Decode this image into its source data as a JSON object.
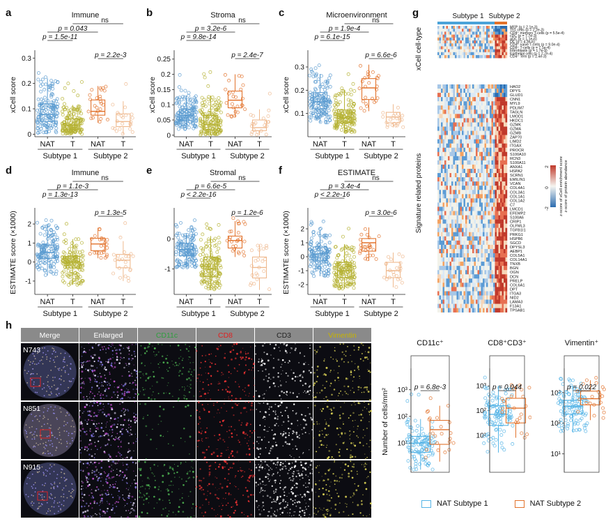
{
  "colors": {
    "nat1": "#5B9BD0",
    "t1": "#B5B133",
    "nat2": "#E2722B",
    "t2": "#EFB98E",
    "nat1_light": "#55B4E6"
  },
  "panel_letters": [
    "a",
    "b",
    "c",
    "d",
    "e",
    "f",
    "g",
    "h"
  ],
  "group_labels": {
    "nat": "NAT",
    "t": "T",
    "subtype1": "Subtype 1",
    "subtype2": "Subtype 2"
  },
  "chart_data": [
    {
      "id": "a",
      "type": "box",
      "title": "Immune",
      "ylabel": "xCell score",
      "ylim": [
        -0.01,
        0.32
      ],
      "yticks": [
        0.0,
        0.1,
        0.2,
        0.3
      ],
      "groups": [
        {
          "name": "NAT Subtype 1",
          "q1": 0.05,
          "median": 0.078,
          "q3": 0.12,
          "wlo": 0.0,
          "whi": 0.22
        },
        {
          "name": "T Subtype 1",
          "q1": 0.02,
          "median": 0.035,
          "q3": 0.06,
          "wlo": 0.0,
          "whi": 0.115
        },
        {
          "name": "NAT Subtype 2",
          "q1": 0.075,
          "median": 0.09,
          "q3": 0.135,
          "wlo": 0.045,
          "whi": 0.19
        },
        {
          "name": "T Subtype 2",
          "q1": 0.03,
          "median": 0.05,
          "q3": 0.08,
          "wlo": 0.0,
          "whi": 0.13
        }
      ],
      "comparisons": [
        {
          "text": "ns",
          "level": 0
        },
        {
          "text": "p = 0.043",
          "level": 1
        },
        {
          "text": "p = 1.5e-11",
          "level": 2
        },
        {
          "text": "p = 2.2e-3",
          "level": 3
        }
      ]
    },
    {
      "id": "b",
      "type": "box",
      "title": "Stroma",
      "ylabel": "xCell score",
      "ylim": [
        -0.005,
        0.27
      ],
      "yticks": [
        0.0,
        0.05,
        0.1,
        0.15,
        0.2,
        0.25
      ],
      "groups": [
        {
          "name": "NAT Subtype 1",
          "q1": 0.048,
          "median": 0.065,
          "q3": 0.085,
          "wlo": 0.02,
          "whi": 0.13
        },
        {
          "name": "T Subtype 1",
          "q1": 0.018,
          "median": 0.035,
          "q3": 0.065,
          "wlo": 0.0,
          "whi": 0.13
        },
        {
          "name": "NAT Subtype 2",
          "q1": 0.09,
          "median": 0.115,
          "q3": 0.145,
          "wlo": 0.06,
          "whi": 0.2
        },
        {
          "name": "T Subtype 2",
          "q1": 0.015,
          "median": 0.025,
          "q3": 0.05,
          "wlo": 0.0,
          "whi": 0.085
        }
      ],
      "comparisons": [
        {
          "text": "ns",
          "level": 0
        },
        {
          "text": "p = 3.2e-6",
          "level": 1
        },
        {
          "text": "p = 9.8e-14",
          "level": 2
        },
        {
          "text": "p = 2.4e-7",
          "level": 3
        }
      ]
    },
    {
      "id": "c",
      "type": "box",
      "title": "Microenvironment",
      "ylabel": "xCell score",
      "ylim": [
        0.0,
        0.36
      ],
      "yticks": [
        0.1,
        0.2,
        0.3
      ],
      "groups": [
        {
          "name": "NAT Subtype 1",
          "q1": 0.12,
          "median": 0.15,
          "q3": 0.19,
          "wlo": 0.06,
          "whi": 0.27
        },
        {
          "name": "T Subtype 1",
          "q1": 0.06,
          "median": 0.08,
          "q3": 0.115,
          "wlo": 0.02,
          "whi": 0.2
        },
        {
          "name": "NAT Subtype 2",
          "q1": 0.16,
          "median": 0.21,
          "q3": 0.25,
          "wlo": 0.11,
          "whi": 0.31
        },
        {
          "name": "T Subtype 2",
          "q1": 0.06,
          "median": 0.085,
          "q3": 0.105,
          "wlo": 0.04,
          "whi": 0.14
        }
      ],
      "comparisons": [
        {
          "text": "ns",
          "level": 0
        },
        {
          "text": "p = 1.9e-4",
          "level": 1
        },
        {
          "text": "p = 6.1e-15",
          "level": 2
        },
        {
          "text": "p = 6.6e-6",
          "level": 3
        }
      ]
    },
    {
      "id": "d",
      "type": "box",
      "title": "Immune",
      "ylabel": "ESTIMATE score (×1000)",
      "ylim": [
        -1.7,
        2.7
      ],
      "yticks": [
        -1,
        0,
        1,
        2
      ],
      "groups": [
        {
          "name": "NAT Subtype 1",
          "q1": 0.2,
          "median": 0.5,
          "q3": 0.9,
          "wlo": -0.7,
          "whi": 1.9
        },
        {
          "name": "T Subtype 1",
          "q1": -0.3,
          "median": 0.0,
          "q3": 0.3,
          "wlo": -1.2,
          "whi": 1.2
        },
        {
          "name": "NAT Subtype 2",
          "q1": 0.6,
          "median": 0.95,
          "q3": 1.25,
          "wlo": 0.2,
          "whi": 1.8
        },
        {
          "name": "T Subtype 2",
          "q1": -0.3,
          "median": 0.1,
          "q3": 0.4,
          "wlo": -1.0,
          "whi": 1.1
        }
      ],
      "comparisons": [
        {
          "text": "ns",
          "level": 0
        },
        {
          "text": "p = 1.1e-3",
          "level": 1
        },
        {
          "text": "p = 1.3e-13",
          "level": 2
        },
        {
          "text": "p = 1.3e-5",
          "level": 3
        }
      ]
    },
    {
      "id": "e",
      "type": "box",
      "title": "Stromal",
      "ylabel": "",
      "ylim": [
        -1.85,
        0.95
      ],
      "yticks": [
        -1,
        0
      ],
      "groups": [
        {
          "name": "NAT Subtype 1",
          "q1": -0.55,
          "median": -0.35,
          "q3": -0.15,
          "wlo": -0.95,
          "whi": 0.2
        },
        {
          "name": "T Subtype 1",
          "q1": -1.25,
          "median": -1.0,
          "q3": -0.6,
          "wlo": -1.7,
          "whi": 0.1
        },
        {
          "name": "NAT Subtype 2",
          "q1": -0.3,
          "median": -0.05,
          "q3": 0.1,
          "wlo": -0.6,
          "whi": 0.6
        },
        {
          "name": "T Subtype 2",
          "q1": -1.3,
          "median": -0.95,
          "q3": -0.6,
          "wlo": -1.7,
          "whi": -0.2
        }
      ],
      "comparisons": [
        {
          "text": "ns",
          "level": 0
        },
        {
          "text": "p = 6.6e-5",
          "level": 1
        },
        {
          "text": "p < 2.2e-16",
          "level": 2
        },
        {
          "text": "p = 1.2e-6",
          "level": 3
        }
      ]
    },
    {
      "id": "f",
      "type": "box",
      "title": "ESTIMATE",
      "ylabel": "ESTIMATE score (×1000)",
      "ylim": [
        -2.7,
        3.3
      ],
      "yticks": [
        -2,
        -1,
        0,
        1,
        2
      ],
      "groups": [
        {
          "name": "NAT Subtype 1",
          "q1": -0.3,
          "median": 0.2,
          "q3": 0.7,
          "wlo": -1.4,
          "whi": 1.9
        },
        {
          "name": "T Subtype 1",
          "q1": -1.5,
          "median": -1.0,
          "q3": -0.4,
          "wlo": -2.3,
          "whi": 0.9
        },
        {
          "name": "NAT Subtype 2",
          "q1": 0.4,
          "median": 1.0,
          "q3": 1.3,
          "wlo": -0.3,
          "whi": 2.1
        },
        {
          "name": "T Subtype 2",
          "q1": -1.5,
          "median": -1.0,
          "q3": -0.4,
          "wlo": -2.2,
          "whi": 0.3
        }
      ],
      "comparisons": [
        {
          "text": "ns",
          "level": 0
        },
        {
          "text": "p = 3.4e-4",
          "level": 1
        },
        {
          "text": "p < 2.2e-16",
          "level": 2
        },
        {
          "text": "p = 3.0e-6",
          "level": 3
        }
      ]
    },
    {
      "id": "h1",
      "type": "box",
      "title": "CD11c⁺",
      "ylabel": "Number of cells/mm²",
      "log": true,
      "ylim": [
        -0.1,
        3.7
      ],
      "yticks": [
        1,
        2,
        3
      ],
      "yticklabels": [
        "10¹",
        "10²",
        "10³"
      ],
      "groups": [
        {
          "name": "NAT Subtype 1",
          "q1": 0.65,
          "median": 1.0,
          "q3": 1.25,
          "wlo": 0.0,
          "whi": 1.9
        },
        {
          "name": "NAT Subtype 2",
          "q1": 0.95,
          "median": 1.5,
          "q3": 1.85,
          "wlo": 0.3,
          "whi": 2.4
        }
      ],
      "comparisons": [
        {
          "text": "p = 6.8e-3",
          "level": 0
        }
      ]
    },
    {
      "id": "h2",
      "type": "box",
      "title": "CD8⁺CD3⁺",
      "ylabel": "",
      "log": true,
      "ylim": [
        -0.5,
        3.6
      ],
      "yticks": [
        1,
        2,
        3
      ],
      "yticklabels": [
        "10¹",
        "10²",
        "10³"
      ],
      "groups": [
        {
          "name": "NAT Subtype 1",
          "q1": 1.4,
          "median": 1.85,
          "q3": 2.2,
          "wlo": 0.3,
          "whi": 3.0
        },
        {
          "name": "NAT Subtype 2",
          "q1": 1.5,
          "median": 2.1,
          "q3": 2.5,
          "wlo": 0.9,
          "whi": 3.0
        }
      ],
      "comparisons": [
        {
          "text": "p = 0.044",
          "level": 0
        }
      ]
    },
    {
      "id": "h3",
      "type": "box",
      "title": "Vimentin⁺",
      "ylabel": "",
      "log": true,
      "ylim": [
        0.4,
        3.7
      ],
      "yticks": [
        1,
        2,
        3
      ],
      "yticklabels": [
        "10¹",
        "10²",
        "10³"
      ],
      "groups": [
        {
          "name": "NAT Subtype 1",
          "q1": 2.3,
          "median": 2.55,
          "q3": 2.75,
          "wlo": 1.7,
          "whi": 3.2
        },
        {
          "name": "NAT Subtype 2",
          "q1": 2.6,
          "median": 2.8,
          "q3": 3.05,
          "wlo": 2.1,
          "whi": 3.4
        }
      ],
      "comparisons": [
        {
          "text": "p = 0.022",
          "level": 0
        }
      ]
    }
  ],
  "heatmap": {
    "top_labels": [
      "Subtype 1",
      "Subtype 2"
    ],
    "top_row_label": "xCell cell-type",
    "bottom_row_label": "Signature related proteins",
    "celltypes": [
      "MEP (p = 2.1e-3)",
      "Th1 cells (p = 2.2e-3)",
      "CD4⁺ memory T-cells (p = 5.5e-4)",
      "cDC (p = 7.7e-3)",
      "aDC (p = 1.1e-6)",
      "DC (p = 4.3e-6)",
      "CD4⁺ naive T-cells (p = 9.0e-4)",
      "CD8⁺ T-cells (p = 7.1e-4)",
      "Fibroblasts (p = 1.7e-9)",
      "Epithelial cells (p = 2.7e-4)",
      "CD4⁺ Tem (p = 2.4e-3)"
    ],
    "proteins": [
      "HAO2",
      "DPYS",
      "GLUD1",
      "CNN1",
      "MYL9",
      "PDLIM7",
      "TAGLN",
      "LMOD1",
      "HKDC1",
      "GZMK",
      "GZMA",
      "GZMB",
      "ZAP70",
      "LIMD2",
      "ITGAX",
      "PROCR",
      "S100A10",
      "RCN3",
      "S100A11",
      "ANXA1",
      "HSPA2",
      "SCRN1",
      "EMILIN1",
      "VCAN",
      "COL4A1",
      "COL3A1",
      "COL1A1",
      "COL1A2",
      "C7",
      "LMCD1",
      "EFEMP2",
      "S100A6",
      "CRIP1",
      "OLFML3",
      "TGFB1I1",
      "PRKG1",
      "HSPB6",
      "SGCD",
      "DPYSL3",
      "AEBP1",
      "COL5A1",
      "COL14A1",
      "TNXB",
      "BGN",
      "OGN",
      "DCN",
      "PRELP",
      "COL6A1",
      "DPT",
      "ITGA3",
      "NID2",
      "LAMA3",
      "F13A1",
      "TPSAB1"
    ],
    "legend_title_1": "z-score of xCell enrichment score",
    "legend_title_2": "z-score of protein abundance",
    "legend_ticks": [
      "2",
      "0",
      "-2"
    ]
  },
  "images": {
    "columns": [
      "Merge",
      "Enlarged",
      "CD11c",
      "CD8",
      "CD3",
      "Vimentin"
    ],
    "column_colors": [
      "#222222",
      "#222222",
      "#2E9E3E",
      "#E02020",
      "#222222",
      "#C8B400"
    ],
    "rows": [
      "N743",
      "N851",
      "N915"
    ]
  },
  "legend": {
    "items": [
      "NAT Subtype 1",
      "NAT Subtype 2"
    ]
  }
}
